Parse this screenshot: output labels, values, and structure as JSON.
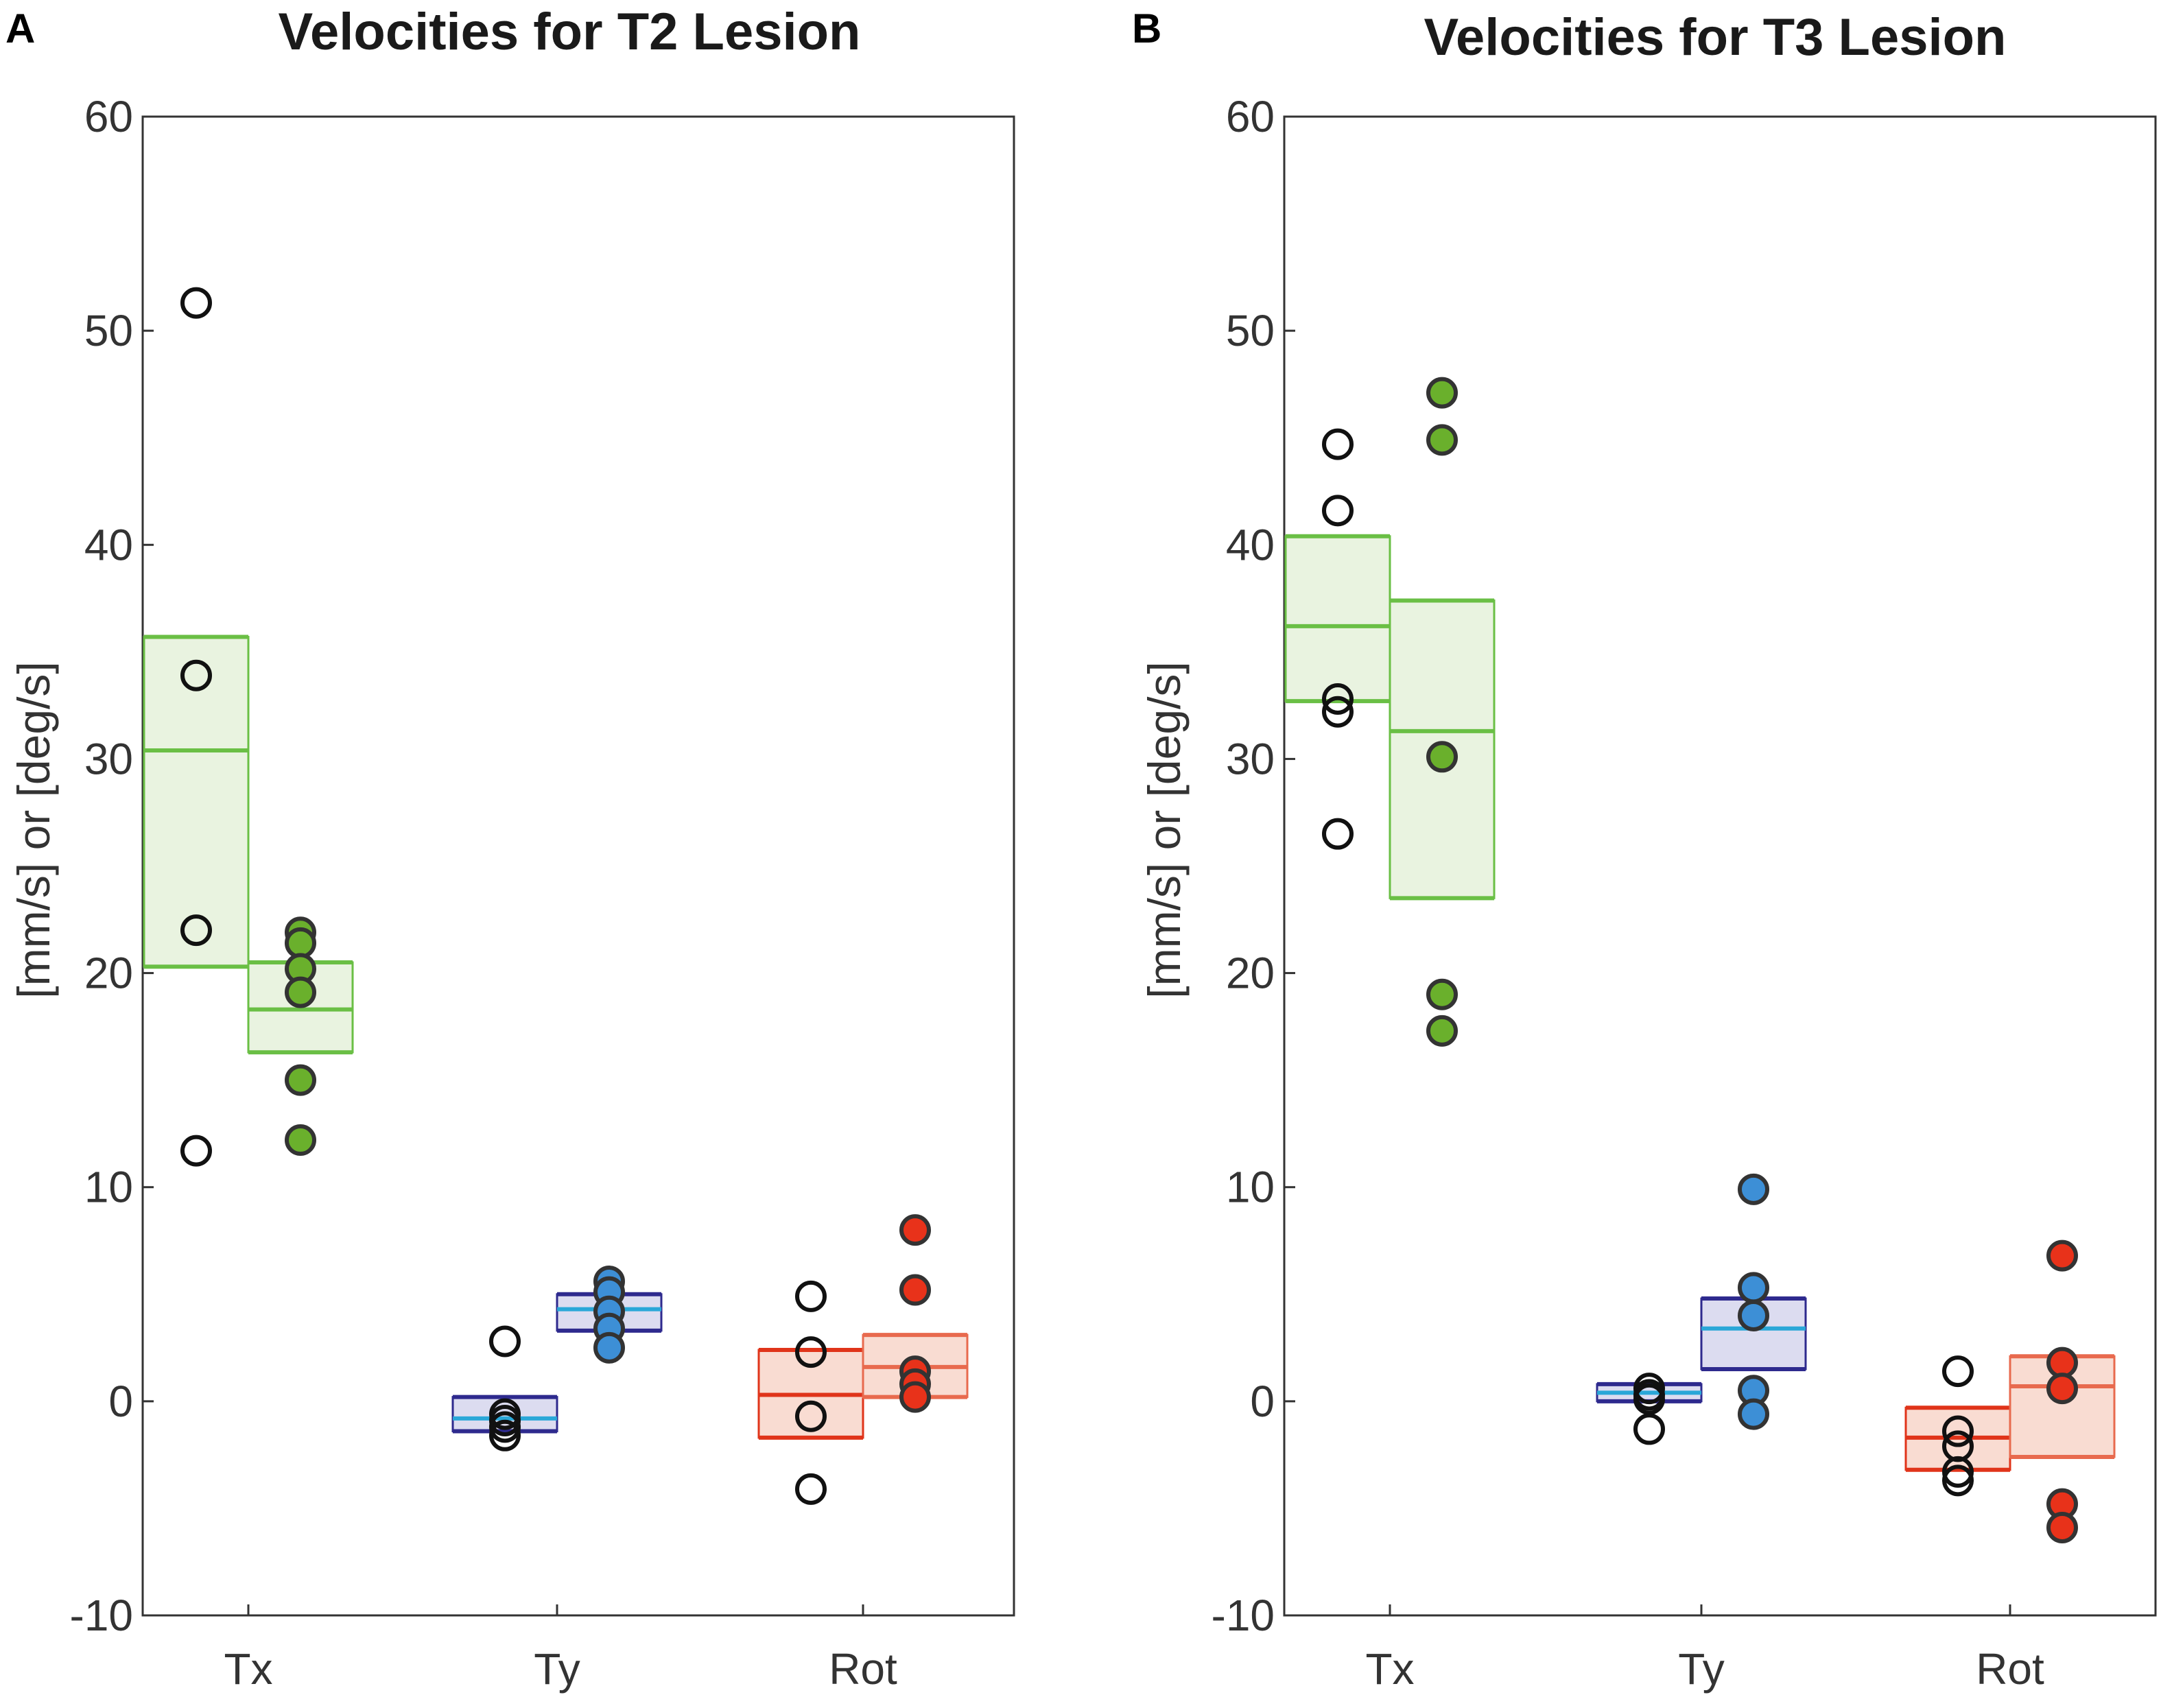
{
  "chart_data": [
    {
      "panel": "A",
      "type": "scatter",
      "title": "Velocities for T2 Lesion",
      "ylabel": "[mm/s] or [deg/s]",
      "xlabel": "",
      "ylim": [
        -10,
        60
      ],
      "yticks": [
        60,
        50,
        40,
        30,
        20,
        10,
        0,
        -10
      ],
      "ytick_labels": [
        "60",
        "50",
        "40",
        "30",
        "20",
        "10",
        "0",
        "-10"
      ],
      "categories": [
        "Tx",
        "Ty",
        "Rot"
      ],
      "groups": [
        {
          "category": "Tx",
          "side": "left",
          "style": "open",
          "points": [
            51.3,
            33.9,
            22.0,
            11.7
          ],
          "box": {
            "low": 20.3,
            "mean": 30.4,
            "high": 35.7,
            "fill": "#e9f3e0",
            "edge": "#6abf45",
            "mean_color": "#6abf45"
          }
        },
        {
          "category": "Tx",
          "side": "right",
          "style": "filled",
          "color": "#6ab02c",
          "points": [
            21.9,
            21.4,
            20.2,
            19.1,
            15.0,
            12.2
          ],
          "box": {
            "low": 16.3,
            "mean": 18.3,
            "high": 20.5,
            "fill": "#e9f3e0",
            "edge": "#6abf45",
            "mean_color": "#6abf45"
          }
        },
        {
          "category": "Ty",
          "side": "left",
          "style": "open",
          "points": [
            2.8,
            -0.6,
            -0.9,
            -1.2,
            -1.6
          ],
          "box": {
            "low": -1.4,
            "mean": -0.8,
            "high": 0.2,
            "fill": "#dcdcf0",
            "edge": "#2e2a8e",
            "mean_color": "#2aa7d8"
          }
        },
        {
          "category": "Ty",
          "side": "right",
          "style": "filled",
          "color": "#3d8fd6",
          "points": [
            5.6,
            5.1,
            4.2,
            3.4,
            2.5
          ],
          "box": {
            "low": 3.3,
            "mean": 4.3,
            "high": 5.0,
            "fill": "#dcdcf0",
            "edge": "#2e2a8e",
            "mean_color": "#2aa7d8"
          }
        },
        {
          "category": "Rot",
          "side": "left",
          "style": "open",
          "points": [
            4.9,
            2.3,
            -0.7,
            -4.1
          ],
          "box": {
            "low": -1.7,
            "mean": 0.3,
            "high": 2.4,
            "fill": "#f9dcd2",
            "edge": "#e0341a",
            "mean_color": "#e0341a"
          }
        },
        {
          "category": "Rot",
          "side": "right",
          "style": "filled",
          "color": "#e8321a",
          "points": [
            8.0,
            5.2,
            1.4,
            0.8,
            0.2
          ],
          "box": {
            "low": 0.2,
            "mean": 1.6,
            "high": 3.1,
            "fill": "#f9dcd2",
            "edge": "#e86a4e",
            "mean_color": "#e86a4e"
          }
        }
      ]
    },
    {
      "panel": "B",
      "type": "scatter",
      "title": "Velocities for T3 Lesion",
      "ylabel": "[mm/s] or [deg/s]",
      "xlabel": "",
      "ylim": [
        -10,
        60
      ],
      "yticks": [
        60,
        50,
        40,
        30,
        20,
        10,
        0,
        -10
      ],
      "ytick_labels": [
        "60",
        "50",
        "40",
        "30",
        "20",
        "10",
        "0",
        "-10"
      ],
      "categories": [
        "Tx",
        "Ty",
        "Rot"
      ],
      "groups": [
        {
          "category": "Tx",
          "side": "left",
          "style": "open",
          "points": [
            44.7,
            41.6,
            32.8,
            32.2,
            26.5
          ],
          "box": {
            "low": 32.7,
            "mean": 36.2,
            "high": 40.4,
            "fill": "#e9f3e0",
            "edge": "#6abf45",
            "mean_color": "#6abf45"
          }
        },
        {
          "category": "Tx",
          "side": "right",
          "style": "filled",
          "color": "#6ab02c",
          "points": [
            47.1,
            44.9,
            30.1,
            19.0,
            17.3
          ],
          "box": {
            "low": 23.5,
            "mean": 31.3,
            "high": 37.4,
            "fill": "#e9f3e0",
            "edge": "#6abf45",
            "mean_color": "#6abf45"
          }
        },
        {
          "category": "Ty",
          "side": "left",
          "style": "open",
          "points": [
            0.6,
            0.3,
            0.1,
            -1.3
          ],
          "box": {
            "low": 0.0,
            "mean": 0.4,
            "high": 0.8,
            "fill": "#dcdcf0",
            "edge": "#2e2a8e",
            "mean_color": "#2aa7d8"
          }
        },
        {
          "category": "Ty",
          "side": "right",
          "style": "filled",
          "color": "#3d8fd6",
          "points": [
            9.9,
            5.3,
            4.0,
            0.5,
            -0.6
          ],
          "box": {
            "low": 1.5,
            "mean": 3.4,
            "high": 4.8,
            "fill": "#dcdcf0",
            "edge": "#2e2a8e",
            "mean_color": "#2aa7d8"
          }
        },
        {
          "category": "Rot",
          "side": "left",
          "style": "open",
          "points": [
            1.4,
            -1.4,
            -2.1,
            -3.3,
            -3.7
          ],
          "box": {
            "low": -3.2,
            "mean": -1.7,
            "high": -0.3,
            "fill": "#f9dcd2",
            "edge": "#e0341a",
            "mean_color": "#e0341a"
          }
        },
        {
          "category": "Rot",
          "side": "right",
          "style": "filled",
          "color": "#e8321a",
          "points": [
            6.8,
            1.8,
            0.6,
            -4.8,
            -5.9
          ],
          "box": {
            "low": -2.6,
            "mean": 0.7,
            "high": 2.1,
            "fill": "#f9dcd2",
            "edge": "#e86a4e",
            "mean_color": "#e86a4e"
          }
        }
      ]
    }
  ]
}
